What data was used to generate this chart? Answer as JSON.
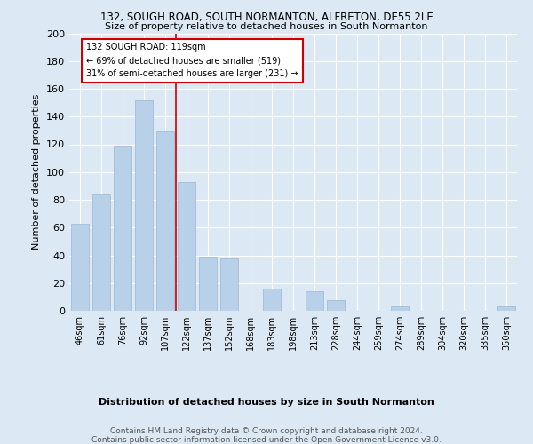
{
  "title1": "132, SOUGH ROAD, SOUTH NORMANTON, ALFRETON, DE55 2LE",
  "title2": "Size of property relative to detached houses in South Normanton",
  "xlabel": "Distribution of detached houses by size in South Normanton",
  "ylabel": "Number of detached properties",
  "footer": "Contains HM Land Registry data © Crown copyright and database right 2024.\nContains public sector information licensed under the Open Government Licence v3.0.",
  "categories": [
    "46sqm",
    "61sqm",
    "76sqm",
    "92sqm",
    "107sqm",
    "122sqm",
    "137sqm",
    "152sqm",
    "168sqm",
    "183sqm",
    "198sqm",
    "213sqm",
    "228sqm",
    "244sqm",
    "259sqm",
    "274sqm",
    "289sqm",
    "304sqm",
    "320sqm",
    "335sqm",
    "350sqm"
  ],
  "values": [
    63,
    84,
    119,
    152,
    129,
    93,
    39,
    38,
    0,
    16,
    0,
    14,
    8,
    0,
    0,
    3,
    0,
    0,
    0,
    0,
    3
  ],
  "bar_color": "#b8d0e8",
  "bar_edge_color": "#9ab8d8",
  "annotation_text": "132 SOUGH ROAD: 119sqm\n← 69% of detached houses are smaller (519)\n31% of semi-detached houses are larger (231) →",
  "annotation_box_color": "#ffffff",
  "annotation_border_color": "#cc0000",
  "line_color": "#cc0000",
  "bg_color": "#dce8f4",
  "plot_bg_color": "#dce8f4",
  "grid_color": "#ffffff",
  "ylim": [
    0,
    200
  ],
  "yticks": [
    0,
    20,
    40,
    60,
    80,
    100,
    120,
    140,
    160,
    180,
    200
  ]
}
